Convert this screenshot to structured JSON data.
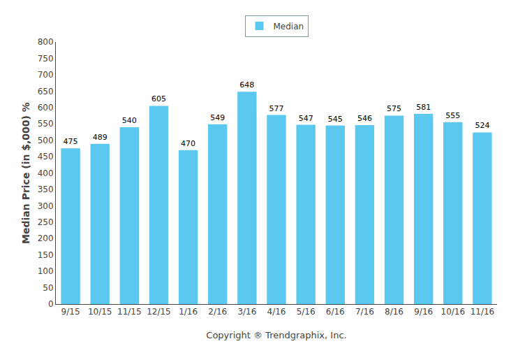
{
  "chart_data": {
    "type": "bar",
    "categories": [
      "9/15",
      "10/15",
      "11/15",
      "12/15",
      "1/16",
      "2/16",
      "3/16",
      "4/16",
      "5/16",
      "6/16",
      "7/16",
      "8/16",
      "9/16",
      "10/16",
      "11/16"
    ],
    "series": [
      {
        "name": "Median",
        "color": "#5BC8F0",
        "values": [
          475,
          489,
          540,
          605,
          470,
          549,
          648,
          577,
          547,
          545,
          546,
          575,
          581,
          555,
          524
        ]
      }
    ],
    "ylabel": "Median Price (in $,000) %",
    "xlabel": "Copyright ® Trendgraphix, Inc.",
    "ylim": [
      0,
      800
    ],
    "yticks": [
      0,
      50,
      100,
      150,
      200,
      250,
      300,
      350,
      400,
      450,
      500,
      550,
      600,
      650,
      700,
      750,
      800
    ],
    "data_labels": true,
    "grid": false,
    "legend": "top"
  }
}
